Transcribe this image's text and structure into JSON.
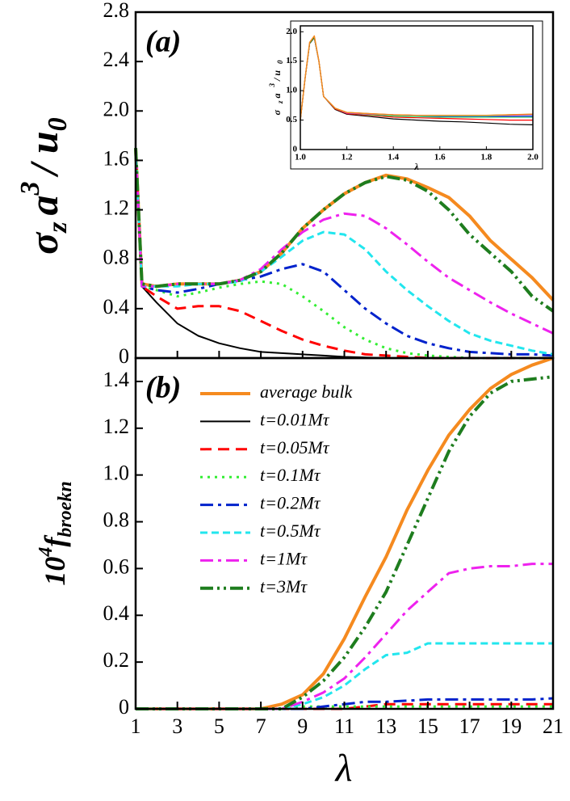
{
  "chart_data": [
    {
      "type": "line",
      "panel_label": "(a)",
      "ylabel": [
        "σ",
        "z",
        "a",
        "3",
        "/ u",
        "0"
      ],
      "xlim": [
        1,
        21
      ],
      "ylim": [
        0,
        2.8
      ],
      "yticks": [
        0,
        0.4,
        0.8,
        1.2,
        1.6,
        {
          "value": 2,
          "label": "2.0"
        },
        2.4,
        2.8
      ],
      "xticks": [
        1,
        3,
        5,
        7,
        9,
        11,
        13,
        15,
        17,
        19,
        21
      ],
      "x": [
        1,
        1.3,
        2,
        3,
        4,
        5,
        6,
        7,
        8,
        9,
        10,
        11,
        12,
        13,
        14,
        15,
        16,
        17,
        18,
        19,
        20,
        21
      ],
      "series": [
        {
          "color": "#f58a1f",
          "linestyle": "solid",
          "linewidth": 4,
          "values": [
            1.7,
            0.6,
            0.58,
            0.6,
            0.6,
            0.6,
            0.63,
            0.7,
            0.85,
            1.05,
            1.2,
            1.33,
            1.42,
            1.48,
            1.45,
            1.38,
            1.3,
            1.15,
            0.95,
            0.8,
            0.65,
            0.47
          ]
        },
        {
          "color": "#000000",
          "linestyle": "solid",
          "linewidth": 2,
          "values": [
            1.7,
            0.58,
            0.45,
            0.28,
            0.18,
            0.12,
            0.08,
            0.05,
            0.04,
            0.03,
            0.02,
            0.01,
            0.005,
            0,
            0,
            0,
            0,
            0,
            0,
            0,
            0,
            0
          ]
        },
        {
          "color": "#ff0000",
          "linestyle": "dashed",
          "linewidth": 3,
          "values": [
            1.7,
            0.58,
            0.5,
            0.4,
            0.42,
            0.42,
            0.38,
            0.3,
            0.22,
            0.15,
            0.1,
            0.06,
            0.03,
            0.02,
            0.01,
            0,
            0,
            0,
            0,
            0,
            0,
            0
          ]
        },
        {
          "color": "#33ee33",
          "linestyle": "dotted",
          "linewidth": 3,
          "values": [
            1.7,
            0.58,
            0.55,
            0.5,
            0.53,
            0.57,
            0.6,
            0.62,
            0.6,
            0.5,
            0.38,
            0.25,
            0.15,
            0.08,
            0.04,
            0.02,
            0.01,
            0,
            0,
            0,
            0,
            0
          ]
        },
        {
          "color": "#0022cc",
          "linestyle": "dashdot",
          "linewidth": 3,
          "values": [
            1.7,
            0.58,
            0.55,
            0.53,
            0.56,
            0.6,
            0.63,
            0.66,
            0.72,
            0.76,
            0.7,
            0.55,
            0.4,
            0.28,
            0.18,
            0.12,
            0.08,
            0.05,
            0.04,
            0.03,
            0.03,
            0.02
          ]
        },
        {
          "color": "#22e6ee",
          "linestyle": "shortdash",
          "linewidth": 3,
          "values": [
            1.7,
            0.58,
            0.58,
            0.58,
            0.6,
            0.6,
            0.62,
            0.7,
            0.82,
            0.95,
            1.02,
            1.0,
            0.88,
            0.7,
            0.55,
            0.42,
            0.3,
            0.2,
            0.14,
            0.1,
            0.06,
            0.03
          ]
        },
        {
          "color": "#ee22ee",
          "linestyle": "dashdot",
          "linewidth": 3,
          "values": [
            1.7,
            0.58,
            0.58,
            0.6,
            0.6,
            0.6,
            0.63,
            0.72,
            0.88,
            1.02,
            1.12,
            1.17,
            1.15,
            1.05,
            0.92,
            0.78,
            0.65,
            0.55,
            0.45,
            0.36,
            0.28,
            0.2
          ]
        },
        {
          "color": "#1e7d1e",
          "linestyle": "dashdotdot",
          "linewidth": 4,
          "values": [
            1.7,
            0.6,
            0.58,
            0.6,
            0.6,
            0.6,
            0.63,
            0.7,
            0.85,
            1.05,
            1.2,
            1.33,
            1.42,
            1.47,
            1.44,
            1.35,
            1.2,
            1.0,
            0.85,
            0.7,
            0.5,
            0.38
          ]
        }
      ]
    },
    {
      "type": "line",
      "ylabel": [
        "σ",
        "z",
        "a",
        "3",
        "/ u",
        "0"
      ],
      "xlabel": "λ",
      "xlim": [
        1,
        2
      ],
      "ylim": [
        0,
        2.1
      ],
      "yticks": [
        0,
        0.5,
        {
          "value": 1,
          "label": "1.0"
        },
        1.5,
        {
          "value": 2,
          "label": "2.0"
        }
      ],
      "xticks": [
        {
          "value": 1,
          "label": "1.0"
        },
        1.2,
        1.4,
        1.6,
        1.8,
        {
          "value": 2,
          "label": "2.0"
        }
      ],
      "x": [
        1.0,
        1.02,
        1.04,
        1.06,
        1.08,
        1.1,
        1.15,
        1.2,
        1.3,
        1.4,
        1.5,
        1.6,
        1.7,
        1.8,
        1.9,
        2.0
      ],
      "series": [
        {
          "color": "#000000",
          "linestyle": "solid",
          "linewidth": 1.2,
          "values": [
            0.5,
            1.2,
            1.8,
            1.9,
            1.5,
            0.9,
            0.68,
            0.6,
            0.56,
            0.52,
            0.5,
            0.48,
            0.47,
            0.45,
            0.43,
            0.42
          ]
        },
        {
          "color": "#ff0000",
          "linestyle": "solid",
          "linewidth": 1.2,
          "values": [
            0.5,
            1.2,
            1.8,
            1.9,
            1.5,
            0.9,
            0.69,
            0.61,
            0.58,
            0.55,
            0.54,
            0.53,
            0.52,
            0.51,
            0.5,
            0.5
          ]
        },
        {
          "color": "#33ee33",
          "linestyle": "solid",
          "linewidth": 1.2,
          "values": [
            0.5,
            1.2,
            1.8,
            1.9,
            1.5,
            0.9,
            0.7,
            0.62,
            0.59,
            0.57,
            0.56,
            0.55,
            0.55,
            0.55,
            0.55,
            0.55
          ]
        },
        {
          "color": "#0022cc",
          "linestyle": "solid",
          "linewidth": 1.2,
          "values": [
            0.5,
            1.2,
            1.8,
            1.9,
            1.5,
            0.9,
            0.7,
            0.62,
            0.6,
            0.58,
            0.57,
            0.56,
            0.56,
            0.56,
            0.56,
            0.56
          ]
        },
        {
          "color": "#22e6ee",
          "linestyle": "solid",
          "linewidth": 1.2,
          "values": [
            0.5,
            1.2,
            1.8,
            1.9,
            1.5,
            0.9,
            0.7,
            0.62,
            0.6,
            0.58,
            0.57,
            0.57,
            0.57,
            0.57,
            0.58,
            0.58
          ]
        },
        {
          "color": "#ee22ee",
          "linestyle": "solid",
          "linewidth": 1.2,
          "values": [
            0.5,
            1.2,
            1.8,
            1.9,
            1.5,
            0.9,
            0.7,
            0.62,
            0.6,
            0.59,
            0.58,
            0.58,
            0.58,
            0.58,
            0.58,
            0.59
          ]
        },
        {
          "color": "#1e7d1e",
          "linestyle": "solid",
          "linewidth": 1.2,
          "values": [
            0.5,
            1.2,
            1.8,
            1.9,
            1.5,
            0.9,
            0.7,
            0.63,
            0.61,
            0.59,
            0.58,
            0.58,
            0.58,
            0.58,
            0.59,
            0.6
          ]
        },
        {
          "color": "#f58a1f",
          "linestyle": "solid",
          "linewidth": 1.5,
          "values": [
            0.5,
            1.2,
            1.82,
            1.93,
            1.5,
            0.9,
            0.7,
            0.63,
            0.61,
            0.59,
            0.58,
            0.58,
            0.58,
            0.58,
            0.59,
            0.6
          ]
        }
      ]
    },
    {
      "type": "line",
      "panel_label": "(b)",
      "ylabel": [
        "10",
        "4",
        "f",
        "broekn"
      ],
      "xlabel": "λ",
      "xlim": [
        1,
        21
      ],
      "ylim": [
        0,
        1.5
      ],
      "yticks": [
        0,
        0.2,
        0.4,
        0.6,
        0.8,
        {
          "value": 1,
          "label": "1.0"
        },
        1.2,
        1.4
      ],
      "xticks": [
        1,
        3,
        5,
        7,
        9,
        11,
        13,
        15,
        17,
        19,
        21
      ],
      "x": [
        1,
        2,
        3,
        4,
        5,
        6,
        7,
        8,
        9,
        10,
        11,
        12,
        13,
        14,
        15,
        16,
        17,
        18,
        19,
        20,
        21
      ],
      "series": [
        {
          "name": "average bulk",
          "color": "#f58a1f",
          "linestyle": "solid",
          "linewidth": 4,
          "values": [
            0,
            0,
            0,
            0,
            0,
            0,
            0,
            0.02,
            0.06,
            0.15,
            0.3,
            0.48,
            0.65,
            0.85,
            1.02,
            1.17,
            1.28,
            1.37,
            1.43,
            1.47,
            1.5
          ]
        },
        {
          "name": "t=0.01Mτ",
          "color": "#000000",
          "linestyle": "solid",
          "linewidth": 2,
          "values": [
            0,
            0,
            0,
            0,
            0,
            0,
            0,
            0,
            0,
            0,
            0,
            0,
            0,
            0,
            0,
            0,
            0,
            0,
            0,
            0,
            0
          ]
        },
        {
          "name": "t=0.05Mτ",
          "color": "#ff0000",
          "linestyle": "dashed",
          "linewidth": 3,
          "values": [
            0,
            0,
            0,
            0,
            0,
            0,
            0,
            0,
            0,
            0,
            0,
            0.01,
            0.02,
            0.02,
            0.02,
            0.02,
            0.02,
            0.02,
            0.02,
            0.02,
            0.02
          ]
        },
        {
          "name": "t=0.1Mτ",
          "color": "#33ee33",
          "linestyle": "dotted",
          "linewidth": 3,
          "values": [
            0,
            0,
            0,
            0,
            0,
            0,
            0,
            0,
            0.01,
            0.01,
            0.01,
            0.01,
            0.01,
            0.01,
            0.01,
            0.01,
            0.01,
            0.01,
            0.01,
            0.01,
            0.01
          ]
        },
        {
          "name": "t=0.2Mτ",
          "color": "#0022cc",
          "linestyle": "dashdot",
          "linewidth": 3,
          "values": [
            0,
            0,
            0,
            0,
            0,
            0,
            0,
            0,
            0,
            0.01,
            0.02,
            0.03,
            0.03,
            0.035,
            0.04,
            0.04,
            0.04,
            0.04,
            0.04,
            0.04,
            0.045
          ]
        },
        {
          "name": "t=0.5Mτ",
          "color": "#22e6ee",
          "linestyle": "shortdash",
          "linewidth": 3,
          "values": [
            0,
            0,
            0,
            0,
            0,
            0,
            0,
            0,
            0.02,
            0.05,
            0.1,
            0.17,
            0.23,
            0.24,
            0.28,
            0.28,
            0.28,
            0.28,
            0.28,
            0.28,
            0.28
          ]
        },
        {
          "name": "t=1Mτ",
          "color": "#ee22ee",
          "linestyle": "dashdot",
          "linewidth": 3,
          "values": [
            0,
            0,
            0,
            0,
            0,
            0,
            0,
            0,
            0.03,
            0.07,
            0.13,
            0.22,
            0.32,
            0.42,
            0.5,
            0.58,
            0.6,
            0.61,
            0.61,
            0.62,
            0.62
          ]
        },
        {
          "name": "t=3Mτ",
          "color": "#1e7d1e",
          "linestyle": "dashdotdot",
          "linewidth": 4,
          "values": [
            0,
            0,
            0,
            0,
            0,
            0,
            0,
            0,
            0.05,
            0.12,
            0.22,
            0.35,
            0.5,
            0.7,
            0.9,
            1.1,
            1.25,
            1.35,
            1.4,
            1.41,
            1.42
          ]
        }
      ]
    }
  ]
}
